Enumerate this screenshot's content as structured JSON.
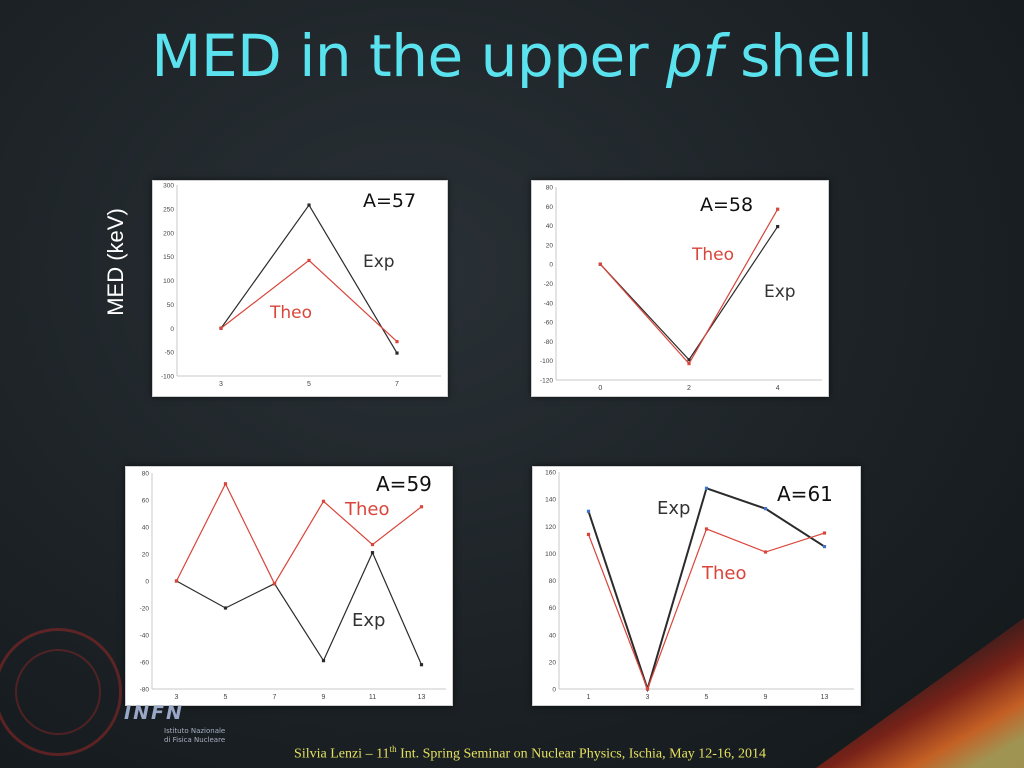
{
  "title": {
    "main": "MED in the upper ",
    "italic": "pf",
    "tail": " shell"
  },
  "ylabel": "MED (keV)",
  "footer": {
    "pre": "Silvia Lenzi –  11",
    "sup": "th",
    "post": "  Int. Spring Seminar on Nuclear Physics, Ischia, May 12-16, 2014"
  },
  "logo": {
    "infn": "INFN",
    "line1": "Istituto Nazionale",
    "line2": "di Fisica Nucleare"
  },
  "colors": {
    "exp": "#2b2b2b",
    "theo": "#d9453a",
    "theo_marker": "#d9453a",
    "exp_marker_61": "#3f73c9",
    "title": "#5ae3ef"
  },
  "chart_data": [
    {
      "type": "line",
      "id": "a57",
      "title": "A=57",
      "x": [
        3,
        5,
        7
      ],
      "xticks": [
        "3",
        "5",
        "7"
      ],
      "ylim": [
        -100,
        300
      ],
      "yticks": [
        -100,
        -50,
        0,
        50,
        100,
        150,
        200,
        250,
        300
      ],
      "series": [
        {
          "name": "Exp",
          "values": [
            0,
            258,
            -52
          ]
        },
        {
          "name": "Theo",
          "values": [
            0,
            142,
            -28
          ]
        }
      ]
    },
    {
      "type": "line",
      "id": "a58",
      "title": "A=58",
      "x": [
        0,
        2,
        4
      ],
      "xticks": [
        "0",
        "2",
        "4"
      ],
      "ylim": [
        -120,
        80
      ],
      "yticks": [
        -120,
        -100,
        -80,
        -60,
        -40,
        -20,
        0,
        20,
        40,
        60,
        80
      ],
      "series": [
        {
          "name": "Exp",
          "values": [
            0,
            -99,
            39
          ]
        },
        {
          "name": "Theo",
          "values": [
            0,
            -103,
            57
          ]
        }
      ]
    },
    {
      "type": "line",
      "id": "a59",
      "title": "A=59",
      "x": [
        3,
        5,
        7,
        9,
        11,
        13
      ],
      "xticks": [
        "3",
        "5",
        "7",
        "9",
        "11",
        "13"
      ],
      "ylim": [
        -80,
        80
      ],
      "yticks": [
        -80,
        -60,
        -40,
        -20,
        0,
        20,
        40,
        60,
        80
      ],
      "series": [
        {
          "name": "Exp",
          "values": [
            0,
            -20,
            -2,
            -59,
            21,
            -62
          ]
        },
        {
          "name": "Theo",
          "values": [
            0,
            72,
            -2,
            59,
            27,
            55
          ]
        }
      ]
    },
    {
      "type": "line",
      "id": "a61",
      "title": "A=61",
      "x": [
        1,
        3,
        5,
        9,
        13
      ],
      "xticks": [
        "1",
        "3",
        "5",
        "9",
        "13"
      ],
      "ylim": [
        0,
        160
      ],
      "yticks": [
        0,
        20,
        40,
        60,
        80,
        100,
        120,
        140,
        160
      ],
      "series": [
        {
          "name": "Exp",
          "values": [
            131,
            0,
            148,
            133,
            105
          ]
        },
        {
          "name": "Theo",
          "values": [
            114,
            0,
            118,
            101,
            115
          ]
        }
      ]
    }
  ]
}
